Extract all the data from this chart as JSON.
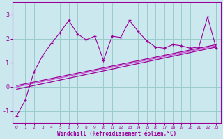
{
  "xlabel": "Windchill (Refroidissement éolien,°C)",
  "xlim": [
    -0.5,
    23.5
  ],
  "ylim": [
    -1.5,
    3.5
  ],
  "yticks": [
    -1,
    0,
    1,
    2,
    3
  ],
  "xticks": [
    0,
    1,
    2,
    3,
    4,
    5,
    6,
    7,
    8,
    9,
    10,
    11,
    12,
    13,
    14,
    15,
    16,
    17,
    18,
    19,
    20,
    21,
    22,
    23
  ],
  "bg_color": "#cce8ef",
  "grid_color": "#99cccc",
  "line_color": "#990099",
  "line_color_light": "#cc44cc",
  "series1_x": [
    0,
    1,
    2,
    3,
    4,
    5,
    6,
    7,
    8,
    9,
    10,
    11,
    12,
    13,
    14,
    15,
    16,
    17,
    18,
    19,
    20,
    21,
    22,
    23
  ],
  "series1_y": [
    -1.2,
    -0.55,
    0.62,
    1.3,
    1.8,
    2.25,
    2.75,
    2.2,
    1.95,
    2.1,
    1.1,
    2.1,
    2.05,
    2.75,
    2.3,
    1.9,
    1.65,
    1.6,
    1.75,
    1.7,
    1.6,
    1.65,
    2.9,
    1.6
  ],
  "line1_x": [
    0,
    23
  ],
  "line1_y": [
    -0.1,
    1.65
  ],
  "line2_x": [
    0,
    23
  ],
  "line2_y": [
    0.0,
    1.7
  ],
  "line3_x": [
    0,
    23
  ],
  "line3_y": [
    0.05,
    1.75
  ],
  "xtick_fontsize": 4.5,
  "ytick_fontsize": 6.0,
  "xlabel_fontsize": 5.5
}
